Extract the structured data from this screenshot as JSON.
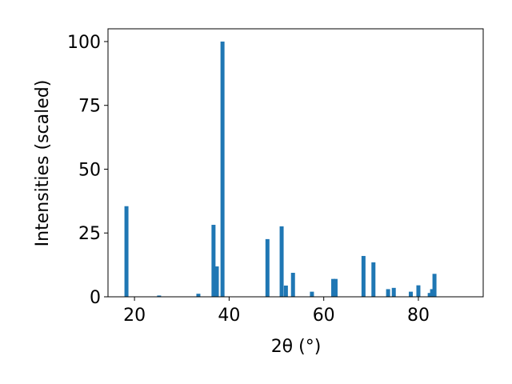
{
  "chart_data": {
    "type": "bar",
    "x": [
      18.3,
      25.2,
      33.5,
      36.7,
      37.4,
      38.6,
      48.1,
      51.1,
      52.0,
      53.5,
      57.5,
      62.0,
      62.5,
      68.4,
      70.5,
      73.6,
      74.8,
      78.4,
      80.0,
      82.4,
      82.9,
      83.4
    ],
    "values": [
      35.5,
      0.5,
      1.2,
      28.2,
      11.9,
      100,
      22.6,
      27.6,
      4.4,
      9.4,
      2,
      7,
      7,
      16,
      13.5,
      3,
      3.5,
      2,
      4.5,
      1.5,
      3,
      9
    ],
    "color": "#1f77b4",
    "xlabel": "2θ (°)",
    "ylabel": "Intensities (scaled)",
    "xlim": [
      14.4,
      93.7
    ],
    "ylim": [
      0,
      105
    ],
    "xticks": [
      20,
      40,
      60,
      80
    ],
    "yticks": [
      0,
      25,
      50,
      75,
      100
    ],
    "grid": false
  }
}
